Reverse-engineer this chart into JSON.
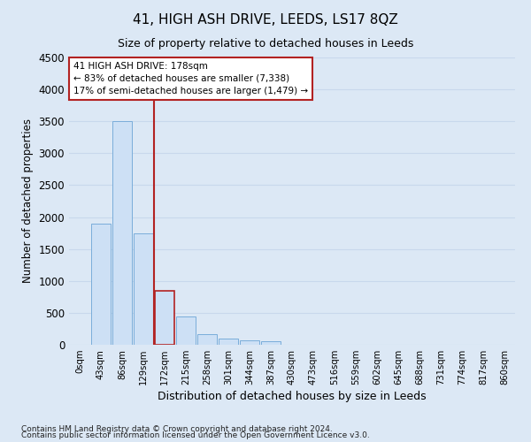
{
  "title": "41, HIGH ASH DRIVE, LEEDS, LS17 8QZ",
  "subtitle": "Size of property relative to detached houses in Leeds",
  "xlabel": "Distribution of detached houses by size in Leeds",
  "ylabel": "Number of detached properties",
  "footnote1": "Contains HM Land Registry data © Crown copyright and database right 2024.",
  "footnote2": "Contains public sector information licensed under the Open Government Licence v3.0.",
  "bar_labels": [
    "0sqm",
    "43sqm",
    "86sqm",
    "129sqm",
    "172sqm",
    "215sqm",
    "258sqm",
    "301sqm",
    "344sqm",
    "387sqm",
    "430sqm",
    "473sqm",
    "516sqm",
    "559sqm",
    "602sqm",
    "645sqm",
    "688sqm",
    "731sqm",
    "774sqm",
    "817sqm",
    "860sqm"
  ],
  "bar_values": [
    5,
    1900,
    3500,
    1750,
    850,
    450,
    160,
    100,
    75,
    50,
    0,
    0,
    0,
    0,
    0,
    0,
    0,
    0,
    0,
    0,
    0
  ],
  "bar_color": "#cde0f5",
  "bar_edge_color": "#7aadda",
  "highlight_bar_index": 4,
  "highlight_bar_edge_color": "#b22222",
  "vline_x_pos": 3.5,
  "vline_color": "#b22222",
  "ylim": [
    0,
    4500
  ],
  "yticks": [
    0,
    500,
    1000,
    1500,
    2000,
    2500,
    3000,
    3500,
    4000,
    4500
  ],
  "annotation_line1": "41 HIGH ASH DRIVE: 178sqm",
  "annotation_line2": "← 83% of detached houses are smaller (7,338)",
  "annotation_line3": "17% of semi-detached houses are larger (1,479) →",
  "annotation_box_facecolor": "#ffffff",
  "annotation_box_edgecolor": "#b22222",
  "bg_color": "#dce8f5",
  "grid_color": "#c8d8ec",
  "axis_bg_color": "#dce8f5"
}
